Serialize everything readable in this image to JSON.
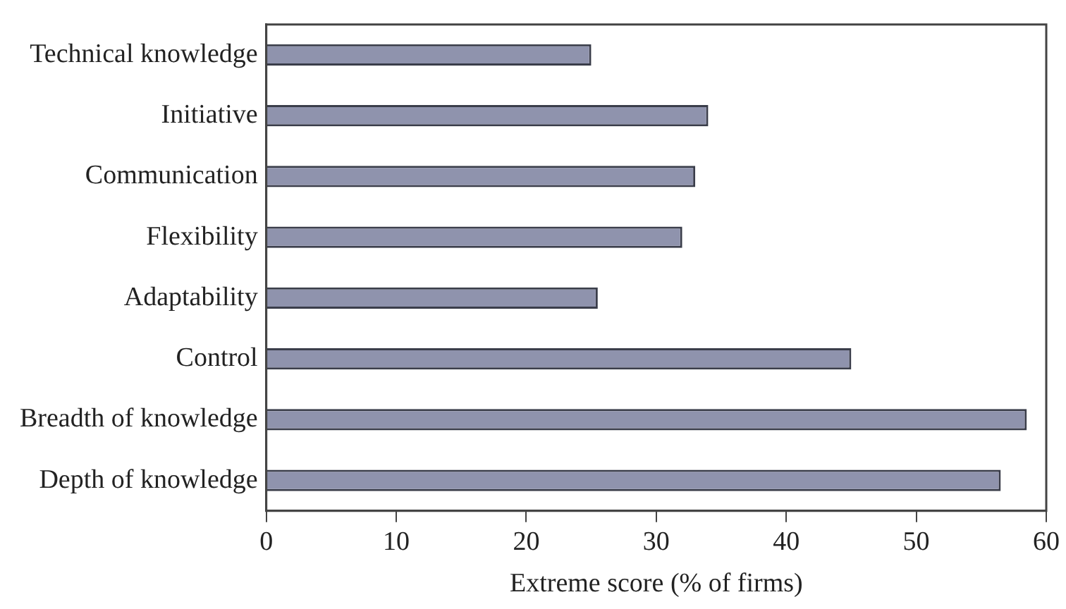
{
  "chart_data": {
    "type": "bar",
    "orientation": "horizontal",
    "xlabel": "Extreme score (% of firms)",
    "categories": [
      "Technical knowledge",
      "Initiative",
      "Communication",
      "Flexibility",
      "Adaptability",
      "Control",
      "Breadth of knowledge",
      "Depth of knowledge"
    ],
    "values": [
      25,
      34,
      33,
      32,
      25.5,
      45,
      58.5,
      56.5
    ],
    "color": "#8f93ad",
    "xlim": [
      0,
      60
    ],
    "xticks": [
      0,
      10,
      20,
      30,
      40,
      50,
      60
    ],
    "grid": false,
    "legend": false
  }
}
